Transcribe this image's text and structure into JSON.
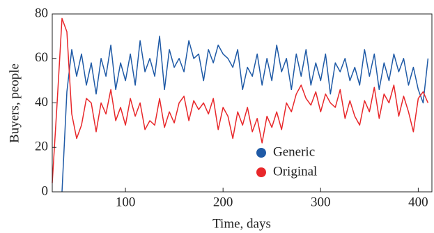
{
  "chart_data": {
    "type": "line",
    "x_label": "Time, days",
    "y_label": "Buyers, people",
    "x": [
      25,
      30,
      35,
      40,
      45,
      50,
      55,
      60,
      65,
      70,
      75,
      80,
      85,
      90,
      95,
      100,
      105,
      110,
      115,
      120,
      125,
      130,
      135,
      140,
      145,
      150,
      155,
      160,
      165,
      170,
      175,
      180,
      185,
      190,
      195,
      200,
      205,
      210,
      215,
      220,
      225,
      230,
      235,
      240,
      245,
      250,
      255,
      260,
      265,
      270,
      275,
      280,
      285,
      290,
      295,
      300,
      305,
      310,
      315,
      320,
      325,
      330,
      335,
      340,
      345,
      350,
      355,
      360,
      365,
      370,
      375,
      380,
      385,
      390,
      395,
      400,
      405,
      410
    ],
    "series": [
      {
        "name": "Generic",
        "color": "#1f5aa6",
        "values": [
          null,
          null,
          0,
          45,
          64,
          52,
          62,
          48,
          58,
          44,
          60,
          52,
          66,
          46,
          58,
          50,
          62,
          48,
          68,
          54,
          60,
          52,
          70,
          46,
          64,
          56,
          60,
          54,
          68,
          60,
          62,
          50,
          64,
          58,
          66,
          62,
          60,
          56,
          64,
          46,
          56,
          52,
          62,
          48,
          60,
          50,
          66,
          54,
          60,
          46,
          62,
          52,
          64,
          48,
          58,
          50,
          62,
          44,
          58,
          54,
          60,
          50,
          56,
          48,
          64,
          52,
          62,
          46,
          58,
          50,
          62,
          54,
          60,
          48,
          56,
          46,
          40,
          60
        ]
      },
      {
        "name": "Original",
        "color": "#e8272a",
        "values": [
          4,
          40,
          78,
          72,
          35,
          24,
          30,
          42,
          40,
          27,
          40,
          35,
          46,
          32,
          38,
          30,
          42,
          34,
          40,
          28,
          32,
          30,
          42,
          29,
          36,
          31,
          40,
          43,
          32,
          41,
          37,
          40,
          35,
          42,
          28,
          38,
          34,
          24,
          36,
          30,
          38,
          27,
          33,
          22,
          34,
          29,
          36,
          28,
          40,
          36,
          44,
          48,
          42,
          39,
          45,
          36,
          44,
          40,
          38,
          46,
          33,
          41,
          34,
          30,
          41,
          36,
          47,
          33,
          44,
          40,
          48,
          34,
          43,
          36,
          27,
          42,
          45,
          40
        ]
      }
    ],
    "xlim": [
      25,
      414
    ],
    "ylim": [
      0,
      80
    ],
    "xticks": [
      100,
      200,
      300,
      400
    ],
    "yticks": [
      0,
      20,
      40,
      60,
      80
    ],
    "legend": "lower center"
  }
}
